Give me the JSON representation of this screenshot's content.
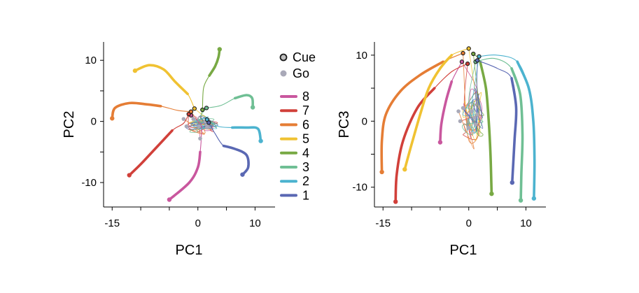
{
  "legend": {
    "markers": [
      {
        "label": "Cue",
        "fill": "#bfbfbf",
        "stroke": "#1a1a1a"
      },
      {
        "label": "Go",
        "fill": "#a9a9b8",
        "stroke": "none"
      }
    ],
    "conditions": [
      {
        "label": "8",
        "color": "#c9579e"
      },
      {
        "label": "7",
        "color": "#d1403a"
      },
      {
        "label": "6",
        "color": "#e57d35"
      },
      {
        "label": "5",
        "color": "#f0c232"
      },
      {
        "label": "4",
        "color": "#78a944"
      },
      {
        "label": "3",
        "color": "#6fbf94"
      },
      {
        "label": "2",
        "color": "#4cb3cf"
      },
      {
        "label": "1",
        "color": "#5a68b3"
      }
    ]
  },
  "chart_data": [
    {
      "type": "line",
      "xlabel": "PC1",
      "ylabel": "PC2",
      "xlim": [
        -16.5,
        13.5
      ],
      "ylim": [
        -14,
        13
      ],
      "xticks": [
        {
          "v": -15,
          "label": "-15"
        },
        {
          "v": -10,
          "label": ""
        },
        {
          "v": -5,
          "label": ""
        },
        {
          "v": 0,
          "label": "0"
        },
        {
          "v": 5,
          "label": ""
        },
        {
          "v": 10,
          "label": "10"
        }
      ],
      "yticks": [
        {
          "v": -10,
          "label": "-10"
        },
        {
          "v": -5,
          "label": ""
        },
        {
          "v": 0,
          "label": "0"
        },
        {
          "v": 5,
          "label": ""
        },
        {
          "v": 10,
          "label": "10"
        }
      ],
      "series": [
        {
          "name": "8",
          "color": "#c9579e",
          "cue": [
            -1.2,
            1.0
          ],
          "go": [
            0.4,
            -2.8
          ],
          "path": [
            [
              -1.2,
              1.0
            ],
            [
              0.5,
              -0.5
            ],
            [
              0.6,
              -2.5
            ],
            [
              0.4,
              -5.0
            ],
            [
              0.0,
              -7.5
            ],
            [
              -1.5,
              -10.0
            ],
            [
              -5.0,
              -12.8
            ]
          ],
          "thick_from": 4
        },
        {
          "name": "7",
          "color": "#d1403a",
          "cue": [
            -1.6,
            1.2
          ],
          "go": [
            -2.0,
            -0.8
          ],
          "path": [
            [
              -1.6,
              1.2
            ],
            [
              -2.5,
              -0.3
            ],
            [
              -4.5,
              -1.5
            ],
            [
              -7.5,
              -4.5
            ],
            [
              -10.0,
              -7.0
            ],
            [
              -12.0,
              -8.8
            ]
          ],
          "thick_from": 3
        },
        {
          "name": "6",
          "color": "#e57d35",
          "cue": [
            -1.2,
            1.6
          ],
          "go": [
            -2.5,
            0.4
          ],
          "path": [
            [
              -1.2,
              1.6
            ],
            [
              -3.5,
              1.8
            ],
            [
              -6.5,
              2.5
            ],
            [
              -9.0,
              2.8
            ],
            [
              -12.0,
              3.0
            ],
            [
              -14.5,
              2.2
            ],
            [
              -15.0,
              0.5
            ]
          ],
          "thick_from": 3
        },
        {
          "name": "5",
          "color": "#f0c232",
          "cue": [
            -0.6,
            2.1
          ],
          "go": [
            -0.8,
            0.4
          ],
          "path": [
            [
              -0.6,
              2.1
            ],
            [
              -1.8,
              4.5
            ],
            [
              -4.0,
              6.5
            ],
            [
              -6.0,
              8.5
            ],
            [
              -8.5,
              9.2
            ],
            [
              -11.0,
              8.3
            ]
          ],
          "thick_from": 2
        },
        {
          "name": "4",
          "color": "#78a944",
          "cue": [
            0.8,
            1.9
          ],
          "go": [
            0.2,
            -0.8
          ],
          "path": [
            [
              0.8,
              1.9
            ],
            [
              1.0,
              5.5
            ],
            [
              2.0,
              7.5
            ],
            [
              3.0,
              9.0
            ],
            [
              3.6,
              10.5
            ],
            [
              3.8,
              11.8
            ]
          ],
          "thick_from": 3
        },
        {
          "name": "3",
          "color": "#6fbf94",
          "cue": [
            1.5,
            2.2
          ],
          "go": [
            1.3,
            0.0
          ],
          "path": [
            [
              1.5,
              2.2
            ],
            [
              4.0,
              2.6
            ],
            [
              6.5,
              3.8
            ],
            [
              8.5,
              4.3
            ],
            [
              9.5,
              3.8
            ],
            [
              9.6,
              2.3
            ]
          ],
          "thick_from": 3
        },
        {
          "name": "2",
          "color": "#4cb3cf",
          "cue": [
            1.6,
            0.3
          ],
          "go": [
            1.6,
            -0.6
          ],
          "path": [
            [
              1.6,
              0.3
            ],
            [
              3.5,
              -0.8
            ],
            [
              6.0,
              -1.0
            ],
            [
              8.5,
              -1.0
            ],
            [
              10.5,
              -1.2
            ],
            [
              11.0,
              -3.2
            ]
          ],
          "thick_from": 3
        },
        {
          "name": "1",
          "color": "#5a68b3",
          "cue": [
            1.9,
            -0.2
          ],
          "go": [
            1.6,
            -1.0
          ],
          "path": [
            [
              1.9,
              -0.2
            ],
            [
              3.0,
              -2.0
            ],
            [
              4.5,
              -4.0
            ],
            [
              6.5,
              -4.5
            ],
            [
              8.5,
              -5.5
            ],
            [
              8.8,
              -7.5
            ],
            [
              7.8,
              -8.7
            ]
          ],
          "thick_from": 3
        }
      ]
    },
    {
      "type": "line",
      "xlabel": "PC1",
      "ylabel": "PC3",
      "xlim": [
        -16.5,
        13.5
      ],
      "ylim": [
        -13,
        12
      ],
      "xticks": [
        {
          "v": -15,
          "label": "-15"
        },
        {
          "v": -10,
          "label": ""
        },
        {
          "v": -5,
          "label": ""
        },
        {
          "v": 0,
          "label": "0"
        },
        {
          "v": 5,
          "label": ""
        },
        {
          "v": 10,
          "label": "10"
        }
      ],
      "yticks": [
        {
          "v": -10,
          "label": "-10"
        },
        {
          "v": -5,
          "label": ""
        },
        {
          "v": 0,
          "label": "0"
        },
        {
          "v": 5,
          "label": ""
        },
        {
          "v": 10,
          "label": "10"
        }
      ],
      "series": [
        {
          "name": "8",
          "color": "#c9579e",
          "cue": [
            -1.2,
            9.0
          ],
          "go": [
            0.0,
            -1.0
          ],
          "path": [
            [
              -1.2,
              9.0
            ],
            [
              -3.0,
              6.0
            ],
            [
              -4.0,
              3.0
            ],
            [
              -4.8,
              -0.5
            ],
            [
              -5.0,
              -3.2
            ]
          ],
          "thick_from": 2
        },
        {
          "name": "7",
          "color": "#d1403a",
          "cue": [
            -0.2,
            8.7
          ],
          "go": [
            -1.5,
            0.0
          ],
          "path": [
            [
              -0.2,
              8.7
            ],
            [
              -3.0,
              7.5
            ],
            [
              -6.0,
              5.0
            ],
            [
              -9.0,
              2.0
            ],
            [
              -11.5,
              -3.0
            ],
            [
              -12.6,
              -8.0
            ],
            [
              -12.8,
              -12.2
            ]
          ],
          "thick_from": 3
        },
        {
          "name": "6",
          "color": "#e57d35",
          "cue": [
            -1.0,
            10.3
          ],
          "go": [
            -1.8,
            1.5
          ],
          "path": [
            [
              -1.0,
              10.3
            ],
            [
              -4.5,
              9.0
            ],
            [
              -8.5,
              7.0
            ],
            [
              -12.0,
              4.5
            ],
            [
              -14.5,
              1.0
            ],
            [
              -15.2,
              -3.0
            ],
            [
              -15.2,
              -7.7
            ]
          ],
          "thick_from": 2
        },
        {
          "name": "5",
          "color": "#f0c232",
          "cue": [
            0.0,
            11.0
          ],
          "go": [
            -1.0,
            2.0
          ],
          "path": [
            [
              0.0,
              11.0
            ],
            [
              -3.0,
              10.0
            ],
            [
              -5.0,
              8.0
            ],
            [
              -7.0,
              5.0
            ],
            [
              -8.5,
              1.0
            ],
            [
              -10.0,
              -3.5
            ],
            [
              -11.2,
              -7.3
            ]
          ],
          "thick_from": 2
        },
        {
          "name": "4",
          "color": "#78a944",
          "cue": [
            0.8,
            10.2
          ],
          "go": [
            0.5,
            1.5
          ],
          "path": [
            [
              0.8,
              10.2
            ],
            [
              2.0,
              9.0
            ],
            [
              3.0,
              5.0
            ],
            [
              3.5,
              0.0
            ],
            [
              3.8,
              -5.0
            ],
            [
              4.0,
              -11.0
            ]
          ],
          "thick_from": 2
        },
        {
          "name": "3",
          "color": "#6fbf94",
          "cue": [
            1.2,
            9.0
          ],
          "go": [
            1.0,
            0.5
          ],
          "path": [
            [
              1.2,
              9.0
            ],
            [
              4.5,
              9.5
            ],
            [
              7.5,
              8.0
            ],
            [
              9.0,
              4.0
            ],
            [
              9.4,
              -2.0
            ],
            [
              9.2,
              -8.0
            ],
            [
              9.1,
              -12.0
            ]
          ],
          "thick_from": 3
        },
        {
          "name": "2",
          "color": "#4cb3cf",
          "cue": [
            1.8,
            9.8
          ],
          "go": [
            1.5,
            1.0
          ],
          "path": [
            [
              1.8,
              9.8
            ],
            [
              5.0,
              10.0
            ],
            [
              8.5,
              9.0
            ],
            [
              10.5,
              5.0
            ],
            [
              11.3,
              0.0
            ],
            [
              11.5,
              -6.0
            ],
            [
              11.4,
              -11.7
            ]
          ],
          "thick_from": 3
        },
        {
          "name": "1",
          "color": "#5a68b3",
          "cue": [
            1.5,
            9.2
          ],
          "go": [
            1.2,
            -0.5
          ],
          "path": [
            [
              1.5,
              9.2
            ],
            [
              5.0,
              8.0
            ],
            [
              7.5,
              6.5
            ],
            [
              8.3,
              2.0
            ],
            [
              8.0,
              -3.0
            ],
            [
              7.6,
              -9.3
            ]
          ],
          "thick_from": 3
        }
      ]
    }
  ]
}
